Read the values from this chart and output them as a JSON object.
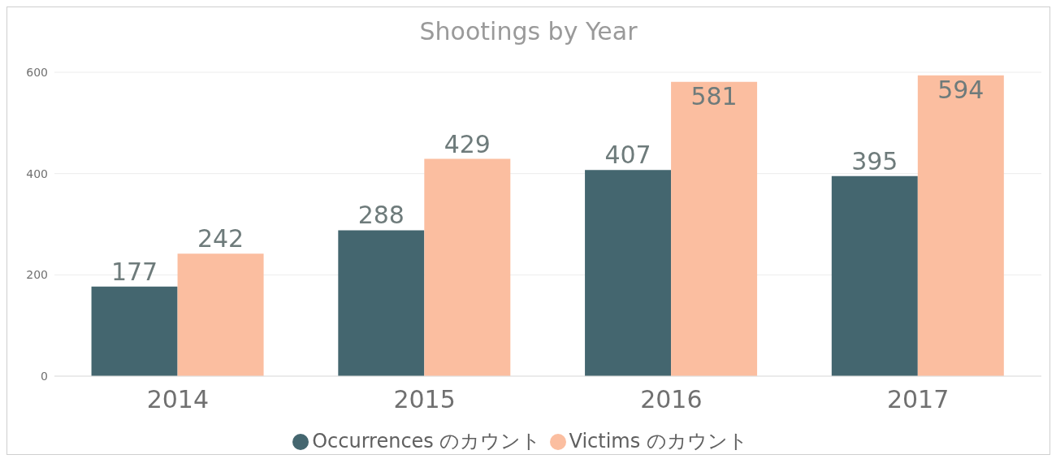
{
  "chart_data": {
    "type": "bar",
    "title": "Shootings by Year",
    "categories": [
      "2014",
      "2015",
      "2016",
      "2017"
    ],
    "series": [
      {
        "name": "Occurrences のカウント",
        "color": "#44666f",
        "values": [
          177,
          288,
          407,
          395
        ]
      },
      {
        "name": "Victims のカウント",
        "color": "#fbbea0",
        "values": [
          242,
          429,
          581,
          594
        ]
      }
    ],
    "ylim": [
      0,
      600
    ],
    "yticks": [
      0,
      200,
      400,
      600
    ],
    "grid": "y",
    "data_labels": true,
    "legend": "bottom"
  }
}
